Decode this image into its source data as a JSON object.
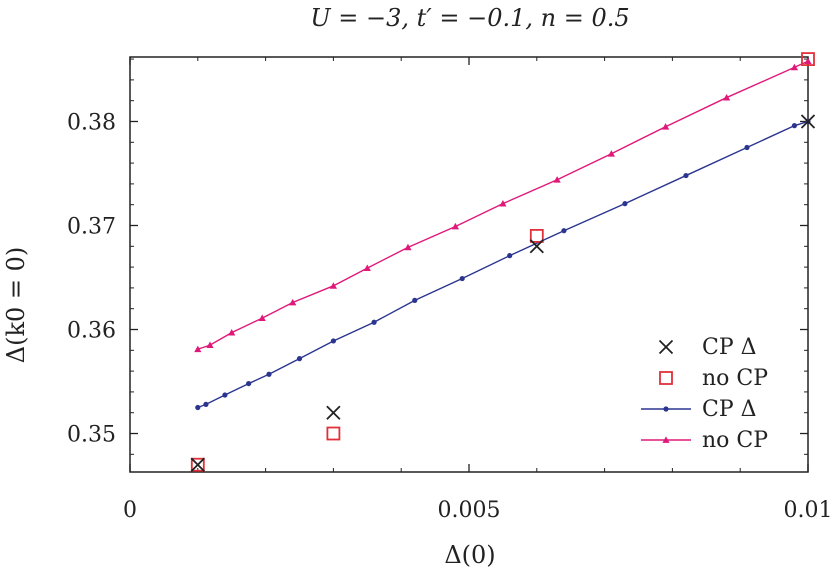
{
  "chart_data": {
    "type": "scatter",
    "title": "U = −3, t′ = −0.1, n = 0.5",
    "xlabel": "Δ(0)",
    "ylabel": "Δ(k0 = 0)",
    "xlim": [
      0,
      0.01
    ],
    "ylim": [
      0.3463,
      0.3862
    ],
    "x_ticks": [
      0,
      0.005,
      0.01
    ],
    "x_tick_labels": [
      "0",
      "0.005",
      "0.01"
    ],
    "y_ticks": [
      0.35,
      0.36,
      0.37,
      0.38
    ],
    "y_tick_labels": [
      "0.35",
      "0.36",
      "0.37",
      "0.38"
    ],
    "grid": false,
    "legend_position": "bottom-right",
    "series": [
      {
        "name": "CP Δ",
        "kind": "markers",
        "marker": "cross",
        "color": "#222222",
        "points": [
          [
            0.001,
            0.347
          ],
          [
            0.003,
            0.352
          ],
          [
            0.006,
            0.368
          ],
          [
            0.01,
            0.38
          ]
        ]
      },
      {
        "name": "no CP",
        "kind": "markers",
        "marker": "square",
        "color": "#e0303a",
        "points": [
          [
            0.001,
            0.347
          ],
          [
            0.003,
            0.35
          ],
          [
            0.006,
            0.369
          ],
          [
            0.01,
            0.386
          ]
        ]
      },
      {
        "name": "CP Δ",
        "kind": "line",
        "marker": "dot",
        "color": "#2b3590",
        "points": [
          [
            0.001,
            0.3525
          ],
          [
            0.00112,
            0.3528
          ],
          [
            0.0014,
            0.3537
          ],
          [
            0.00175,
            0.3548
          ],
          [
            0.00205,
            0.3557
          ],
          [
            0.0025,
            0.3572
          ],
          [
            0.003,
            0.3589
          ],
          [
            0.0036,
            0.3607
          ],
          [
            0.0042,
            0.3628
          ],
          [
            0.0049,
            0.3649
          ],
          [
            0.0056,
            0.3671
          ],
          [
            0.0064,
            0.3695
          ],
          [
            0.0073,
            0.3721
          ],
          [
            0.0082,
            0.3748
          ],
          [
            0.0091,
            0.3775
          ],
          [
            0.0098,
            0.3796
          ],
          [
            0.01,
            0.38
          ]
        ]
      },
      {
        "name": "no CP",
        "kind": "line",
        "marker": "triangle",
        "color": "#e0187a",
        "points": [
          [
            0.001,
            0.3581
          ],
          [
            0.00118,
            0.3585
          ],
          [
            0.0015,
            0.3597
          ],
          [
            0.00195,
            0.3611
          ],
          [
            0.0024,
            0.3626
          ],
          [
            0.003,
            0.3642
          ],
          [
            0.0035,
            0.3659
          ],
          [
            0.0041,
            0.3679
          ],
          [
            0.0048,
            0.3699
          ],
          [
            0.0055,
            0.3721
          ],
          [
            0.0063,
            0.3744
          ],
          [
            0.0071,
            0.3769
          ],
          [
            0.0079,
            0.3795
          ],
          [
            0.0088,
            0.3823
          ],
          [
            0.0098,
            0.3852
          ],
          [
            0.01,
            0.3858
          ]
        ]
      }
    ]
  }
}
